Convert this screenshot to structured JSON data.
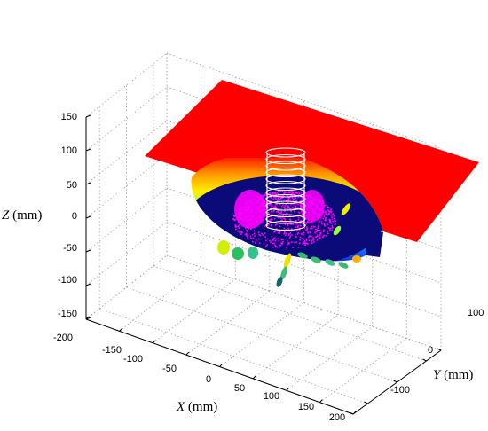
{
  "chart_data": {
    "type": "scatter",
    "subtype": "3d-surface-with-particles",
    "title": "",
    "xlabel": {
      "var": "X",
      "unit": "(mm)"
    },
    "ylabel": {
      "var": "Y",
      "unit": "(mm)"
    },
    "zlabel": {
      "var": "Z",
      "unit": "(mm)"
    },
    "xlim": [
      -200,
      200
    ],
    "ylim": [
      -150,
      150
    ],
    "zlim": [
      -150,
      150
    ],
    "x_ticks": [
      "-200",
      "-150",
      "-100",
      "-50",
      "0",
      "50",
      "100",
      "150",
      "200"
    ],
    "y_ticks": [
      "-100",
      "0",
      "100"
    ],
    "z_ticks": [
      "150",
      "100",
      "50",
      "0",
      "-50",
      "-100",
      "-150"
    ],
    "grid": true,
    "colors": {
      "free_surface": "#ff0000",
      "cavity_bottom": "#0a0a78",
      "particles": "#ff00ff",
      "grid": "#a0a0a0",
      "axes": "#000000"
    }
  }
}
